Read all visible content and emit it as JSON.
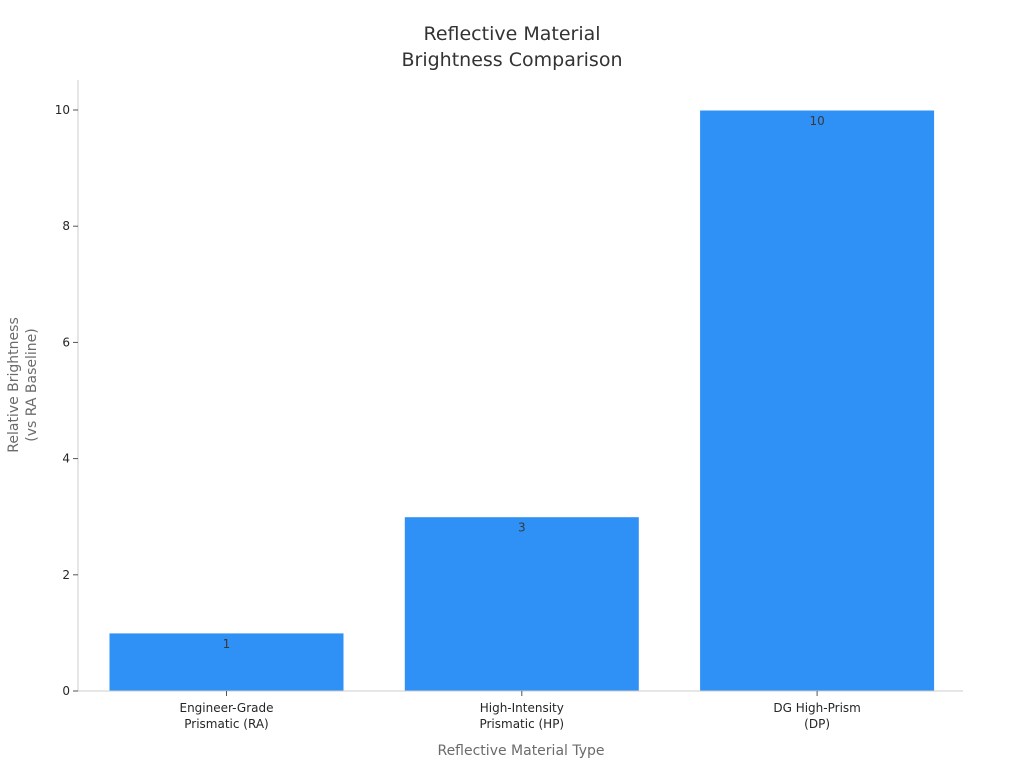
{
  "chart_data": {
    "type": "bar",
    "title": [
      "Reflective Material",
      "Brightness Comparison"
    ],
    "xlabel": "Reflective Material Type",
    "ylabel": [
      "Relative Brightness",
      "(vs RA Baseline)"
    ],
    "categories": [
      [
        "Engineer-Grade",
        "Prismatic (RA)"
      ],
      [
        "High-Intensity",
        "Prismatic (HP)"
      ],
      [
        "DG High-Prism",
        "(DP)"
      ]
    ],
    "values": [
      1,
      3,
      10
    ],
    "data_labels": [
      "1",
      "3",
      "10"
    ],
    "ylim": [
      0,
      10.5
    ],
    "yticks": [
      0,
      2,
      4,
      6,
      8,
      10
    ],
    "grid": false,
    "legend": "none",
    "colors": {
      "bar": "#2f90f5",
      "axis": "#cccccc",
      "text": "#262626"
    }
  }
}
